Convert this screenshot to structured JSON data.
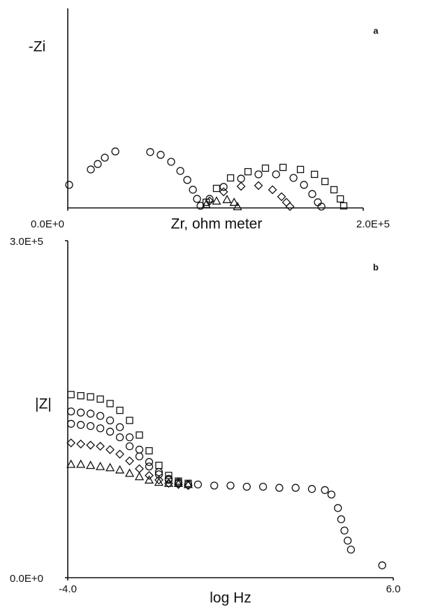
{
  "chart_data": [
    {
      "type": "scatter",
      "panel_label": "a",
      "xlabel": "Zr, ohm meter",
      "ylabel": "-Zi",
      "xlim": [
        0,
        200000
      ],
      "ylim": [
        0,
        135000
      ],
      "xticks": [
        {
          "value": 0,
          "label": "0.0E+0"
        },
        {
          "value": 200000,
          "label": "2.0E+5"
        }
      ],
      "series": [
        {
          "marker": "circle",
          "color": "#111111",
          "x": [
            950,
            15600,
            20300,
            25100,
            32200,
            55800,
            62900,
            70000,
            76200,
            80900,
            84700,
            87500,
            89900
          ],
          "values": [
            15600,
            26000,
            29700,
            34000,
            38200,
            37800,
            35900,
            31200,
            25000,
            18900,
            12300,
            6100,
            1400
          ]
        },
        {
          "marker": "square",
          "color": "#111111",
          "x": [
            93700,
            100700,
            110200,
            122000,
            133800,
            145700,
            157500,
            167000,
            174100,
            180200,
            184500,
            186800
          ],
          "values": [
            3800,
            13200,
            20300,
            24500,
            26900,
            27400,
            26000,
            22700,
            17900,
            12300,
            6100,
            1400
          ]
        },
        {
          "marker": "circle",
          "color": "#111111",
          "x": [
            96000,
            105500,
            117300,
            129100,
            141000,
            152800,
            159900,
            165500,
            169300,
            171700
          ],
          "values": [
            6100,
            14200,
            19800,
            22700,
            22700,
            20300,
            15600,
            9400,
            3800,
            900
          ]
        },
        {
          "marker": "diamond",
          "color": "#111111",
          "x": [
            96000,
            105500,
            117300,
            129100,
            138600,
            144700,
            148000,
            150400
          ],
          "values": [
            4700,
            10900,
            14600,
            15100,
            12300,
            7600,
            3800,
            900
          ]
        },
        {
          "marker": "triangle",
          "color": "#111111",
          "x": [
            93700,
            100700,
            107800,
            112600,
            114900
          ],
          "values": [
            2400,
            4700,
            5700,
            3800,
            900
          ]
        }
      ]
    },
    {
      "type": "scatter",
      "panel_label": "b",
      "xlabel": "log Hz",
      "ylabel": "|Z|",
      "xlim": [
        -4,
        6
      ],
      "ylim": [
        0,
        300000
      ],
      "xticks": [
        {
          "value": -4,
          "label": "-4.0"
        },
        {
          "value": 6,
          "label": "6.0"
        }
      ],
      "yticks": [
        {
          "value": 0,
          "label": "0.0E+0"
        },
        {
          "value": 300000,
          "label": "3.0E+5"
        }
      ],
      "series": [
        {
          "marker": "square",
          "color": "#111111",
          "x": [
            -3.9,
            -3.6,
            -3.3,
            -3.0,
            -2.7,
            -2.4,
            -2.1,
            -1.8,
            -1.5,
            -1.2,
            -0.9,
            -0.6,
            -0.3
          ],
          "values": [
            163000,
            162000,
            161000,
            159000,
            155000,
            149000,
            140000,
            127000,
            113000,
            100000,
            91000,
            86000,
            84000
          ]
        },
        {
          "marker": "circle",
          "color": "#111111",
          "x": [
            -3.9,
            -3.6,
            -3.3,
            -3.0,
            -2.7,
            -2.4,
            -2.1,
            -1.8,
            -1.5,
            -1.2,
            -0.9,
            -0.6,
            -0.3
          ],
          "values": [
            148000,
            147000,
            146000,
            144000,
            140000,
            134000,
            125000,
            114000,
            103000,
            94000,
            88000,
            85000,
            83000
          ]
        },
        {
          "marker": "circle",
          "color": "#111111",
          "x": [
            -3.9,
            -3.6,
            -3.3,
            -3.0,
            -2.7,
            -2.4,
            -2.1,
            -1.8,
            -1.5,
            -1.2,
            -0.9,
            -0.6,
            -0.3
          ],
          "values": [
            137000,
            136000,
            135000,
            133000,
            130000,
            125000,
            117000,
            108000,
            99000,
            92000,
            87000,
            84000,
            83000
          ]
        },
        {
          "marker": "diamond",
          "color": "#111111",
          "x": [
            -3.9,
            -3.6,
            -3.3,
            -3.0,
            -2.7,
            -2.4,
            -2.1,
            -1.8,
            -1.5,
            -1.2,
            -0.9,
            -0.6,
            -0.3
          ],
          "values": [
            120000,
            119000,
            118000,
            117000,
            114000,
            110000,
            104000,
            97000,
            91000,
            87000,
            84000,
            83000,
            82000
          ]
        },
        {
          "marker": "triangle",
          "color": "#111111",
          "x": [
            -3.9,
            -3.6,
            -3.3,
            -3.0,
            -2.7,
            -2.4,
            -2.1,
            -1.8,
            -1.5,
            -1.2,
            -0.9,
            -0.6,
            -0.3
          ],
          "values": [
            101000,
            101000,
            100000,
            99000,
            98000,
            96000,
            93000,
            90000,
            87000,
            85000,
            84000,
            84000,
            83000
          ]
        },
        {
          "marker": "circle",
          "color": "#111111",
          "x": [
            0,
            0.5,
            1,
            1.5,
            2,
            2.5,
            3,
            3.5,
            3.9,
            4.1,
            4.3,
            4.4,
            4.5,
            4.6,
            4.7,
            5.66
          ],
          "values": [
            83000,
            82000,
            82000,
            81000,
            81000,
            80000,
            80000,
            79000,
            78000,
            74000,
            62000,
            52000,
            42000,
            33000,
            25000,
            11000
          ]
        }
      ]
    }
  ]
}
